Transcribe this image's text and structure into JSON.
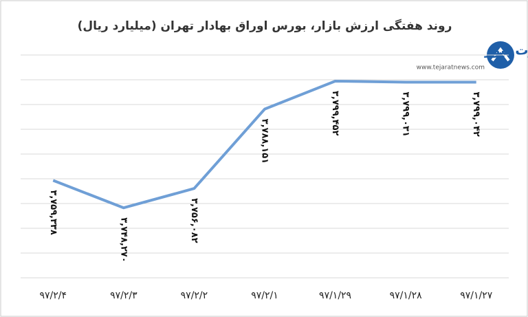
{
  "chart_data": {
    "type": "line",
    "title": "روند هفتگی ارزش بازار، بورس اوراق بهادار تهران (میلیارد ریال)",
    "logo": "تجارت نیوز",
    "website": "www.tejaratnews.com",
    "categories": [
      "۹۷/۲/۴",
      "۹۷/۲/۳",
      "۹۷/۲/۲",
      "۹۷/۲/۱",
      "۹۷/۱/۲۹",
      "۹۷/۱/۲۸",
      "۹۷/۱/۲۷"
    ],
    "values": [
      3759338,
      3748270,
      3756082,
      3788151,
      3799452,
      3799031,
      3799042
    ],
    "value_labels": [
      "۳,۷۵۹,۳۳۸",
      "۳,۷۴۸,۲۷۰",
      "۳,۷۵۶,۰۸۲",
      "۳,۷۸۸,۱۵۱",
      "۳,۷۹۹,۴۵۲",
      "۳,۷۹۹,۰۳۱",
      "۳,۷۹۹,۰۴۲"
    ],
    "color": "#6f9fd6",
    "ylim": [
      3720000,
      3810000
    ],
    "yticks": [
      3720000,
      3730000,
      3740000,
      3750000,
      3760000,
      3770000,
      3780000,
      3790000,
      3800000,
      3810000
    ],
    "grid": true
  }
}
